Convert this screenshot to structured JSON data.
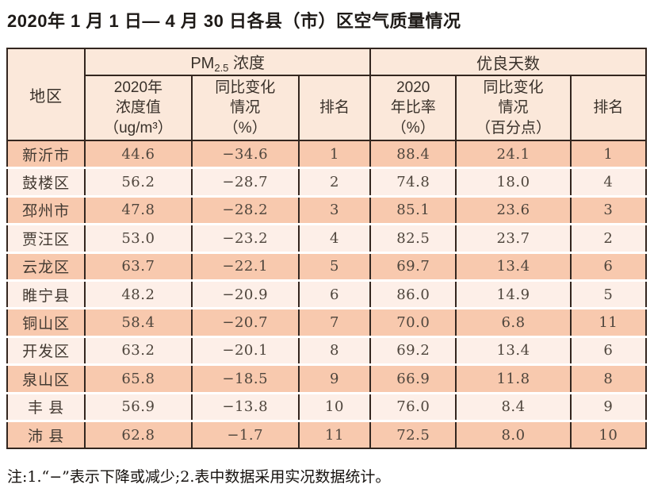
{
  "page": {
    "title": "2020年 1 月 1 日— 4 月 30 日各县（市）区空气质量情况",
    "footnote": "注:1.“−”表示下降或减少;2.表中数据采用实况数据统计。"
  },
  "colors": {
    "row_odd": "#f8c9ae",
    "row_even": "#fdefe8",
    "header_bg": "#fbe8da",
    "border": "#33261f",
    "separator": "#ffffff"
  },
  "table": {
    "header": {
      "region": "地区",
      "pm25_prefix": "PM",
      "pm25_sub": "2.5",
      "pm25_suffix": " 浓度",
      "good_days": "优良天数",
      "sub_pm_value": "2020年\n浓度值\n（ug/m³）",
      "sub_pm_change": "同比变化\n情况\n（%）",
      "sub_pm_rank": "排名",
      "sub_days_ratio": "2020\n年比率\n（%）",
      "sub_days_change": "同比变化\n情况\n（百分点）",
      "sub_days_rank": "排名"
    },
    "rows": [
      [
        "新沂市",
        "44.6",
        "−34.6",
        "1",
        "88.4",
        "24.1",
        "1"
      ],
      [
        "鼓楼区",
        "56.2",
        "−28.7",
        "2",
        "74.8",
        "18.0",
        "4"
      ],
      [
        "邳州市",
        "47.8",
        "−28.2",
        "3",
        "85.1",
        "23.6",
        "3"
      ],
      [
        "贾汪区",
        "53.0",
        "−23.2",
        "4",
        "82.5",
        "23.7",
        "2"
      ],
      [
        "云龙区",
        "63.7",
        "−22.1",
        "5",
        "69.7",
        "13.4",
        "6"
      ],
      [
        "睢宁县",
        "48.2",
        "−20.9",
        "6",
        "86.0",
        "14.9",
        "5"
      ],
      [
        "铜山区",
        "58.4",
        "−20.7",
        "7",
        "70.0",
        "6.8",
        "11"
      ],
      [
        "开发区",
        "63.2",
        "−20.1",
        "8",
        "69.2",
        "13.4",
        "6"
      ],
      [
        "泉山区",
        "65.8",
        "−18.5",
        "9",
        "66.9",
        "11.8",
        "8"
      ],
      [
        "丰 县",
        "56.9",
        "−13.8",
        "10",
        "76.0",
        "8.4",
        "9"
      ],
      [
        "沛 县",
        "62.8",
        "−1.7",
        "11",
        "72.5",
        "8.0",
        "10"
      ]
    ]
  }
}
